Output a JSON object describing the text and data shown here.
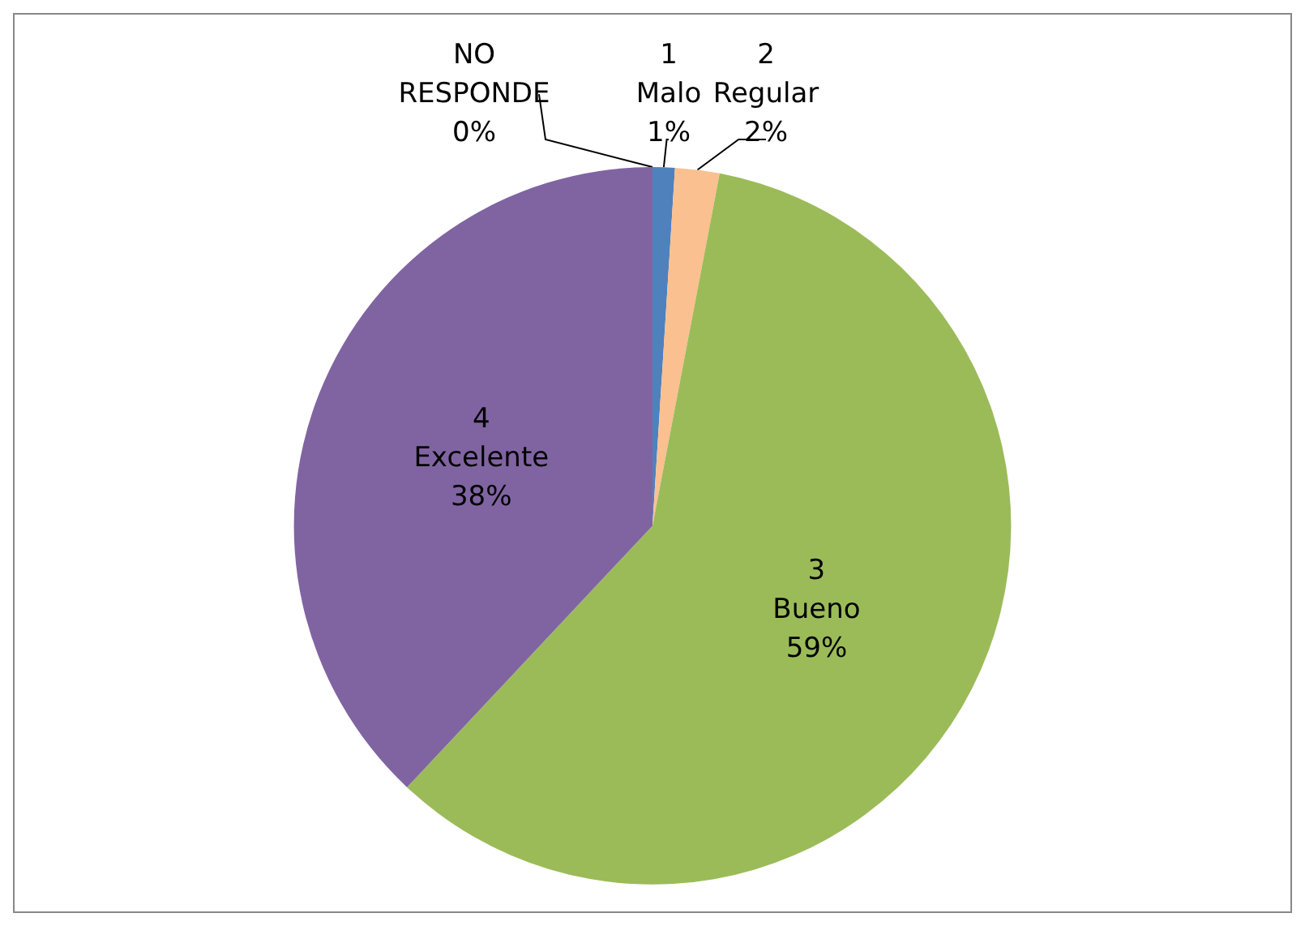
{
  "chart_data": {
    "type": "pie",
    "categories": [
      "1\nMalo",
      "2\nRegular",
      "3\nBueno",
      "4\nExcelente",
      "NO\nRESPONDE"
    ],
    "values": [
      1,
      2,
      59,
      38,
      0
    ],
    "colors": [
      "#4f81bd",
      "#fac090",
      "#9bbb59",
      "#8064a2",
      "#ffff00"
    ],
    "value_labels": [
      "1%",
      "2%",
      "59%",
      "38%",
      "0%"
    ],
    "legend": false
  }
}
